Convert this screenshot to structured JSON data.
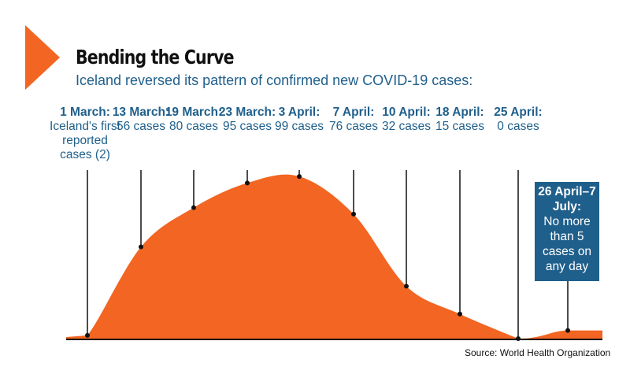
{
  "title": "Bending the Curve",
  "subtitle": "Iceland reversed its pattern of confirmed new COVID-19 cases:",
  "source": "Source: World Health Organization",
  "colors": {
    "area": "#f26522",
    "accent": "#f26522",
    "text_blue": "#1f5f8b",
    "box": "#1f5f8b",
    "axis": "#111111"
  },
  "chart_data": {
    "type": "area",
    "x_label_style": "dates",
    "x": [
      "1 March",
      "13 March",
      "19 March",
      "23 March",
      "3 April",
      "7 April",
      "10 April",
      "18 April",
      "25 April",
      "26 April–7 July"
    ],
    "values": [
      2,
      56,
      80,
      95,
      99,
      76,
      32,
      15,
      0,
      5
    ],
    "grid": false,
    "legend": "none",
    "annotations": [
      {
        "date": "1 March:",
        "desc": "Iceland's first reported cases (2)",
        "value": 2
      },
      {
        "date": "13 March:",
        "desc": "56 cases",
        "value": 56
      },
      {
        "date": "19 March:",
        "desc": "80 cases",
        "value": 80
      },
      {
        "date": "23 March:",
        "desc": "95 cases",
        "value": 95
      },
      {
        "date": "3 April:",
        "desc": "99 cases",
        "value": 99
      },
      {
        "date": "7 April:",
        "desc": "76 cases",
        "value": 76
      },
      {
        "date": "10 April:",
        "desc": "32 cases",
        "value": 32
      },
      {
        "date": "18 April:",
        "desc": "15 cases",
        "value": 15
      },
      {
        "date": "25 April:",
        "desc": "0 cases",
        "value": 0
      }
    ],
    "final_note": {
      "date": "26 April–7 July:",
      "desc": "No more than 5 cases on any day",
      "value": 5
    }
  }
}
